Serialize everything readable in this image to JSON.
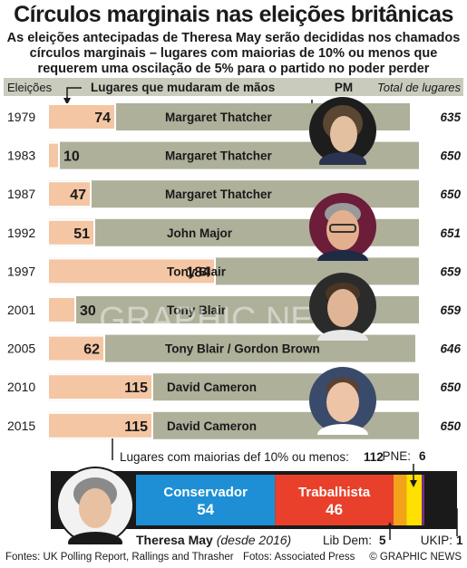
{
  "title": "Círculos marginais nas eleições britânicas",
  "subtitle": "As eleições antecipadas de Theresa May serão decididas nos chamados círculos marginais – lugares com maiorias de 10% ou menos que requerem uma oscilação de 5% para o partido no poder perder",
  "watermark": "GRAPHIC NEWS",
  "chart_data": {
    "type": "bar",
    "column_headers": {
      "election": "Eleições",
      "seats_changed": "Lugares que mudaram de mãos",
      "pm": "PM",
      "total": "Total de lugares"
    },
    "rows": [
      {
        "year": "1979",
        "changed": 74,
        "pm": "Margaret Thatcher",
        "total": "635"
      },
      {
        "year": "1983",
        "changed": 10,
        "pm": "Margaret Thatcher",
        "total": "650"
      },
      {
        "year": "1987",
        "changed": 47,
        "pm": "Margaret Thatcher",
        "total": "650"
      },
      {
        "year": "1992",
        "changed": 51,
        "pm": "John Major",
        "total": "651"
      },
      {
        "year": "1997",
        "changed": 184,
        "pm": "Tony Blair",
        "total": "659"
      },
      {
        "year": "2001",
        "changed": 30,
        "pm": "Tony Blair",
        "total": "659"
      },
      {
        "year": "2005",
        "changed": 62,
        "pm": "Tony Blair / Gordon Brown",
        "total": "646"
      },
      {
        "year": "2010",
        "changed": 115,
        "pm": "David Cameron",
        "total": "650"
      },
      {
        "year": "2015",
        "changed": 115,
        "pm": "David Cameron",
        "total": "650"
      }
    ],
    "marginal_seats": {
      "label": "Lugares com maiorias def 10% ou menos:",
      "total": 112,
      "segments": [
        {
          "name": "Conservador",
          "value": 54,
          "color": "#1e8fd5"
        },
        {
          "name": "Trabalhista",
          "value": 46,
          "color": "#e8402a"
        },
        {
          "name": "Lib Dem",
          "value": 5,
          "color": "#f5a21b"
        },
        {
          "name": "PNE",
          "value": 6,
          "color": "#ffe000"
        },
        {
          "name": "UKIP",
          "value": 1,
          "color": "#7b2a8a"
        }
      ]
    },
    "current_pm": {
      "name": "Theresa May",
      "since": "(desde 2016)"
    }
  },
  "colors": {
    "row_bar": "#aeb09a",
    "changed_bar": "#f4c6a3",
    "changed_bar_stroke": "#ffffff",
    "header_bg": "#c9cbbd"
  },
  "footer": {
    "sources": "Fontes: UK Polling Report, Rallings and Thrasher",
    "photos": "Fotos: Associated Press",
    "credit": "© GRAPHIC NEWS"
  }
}
